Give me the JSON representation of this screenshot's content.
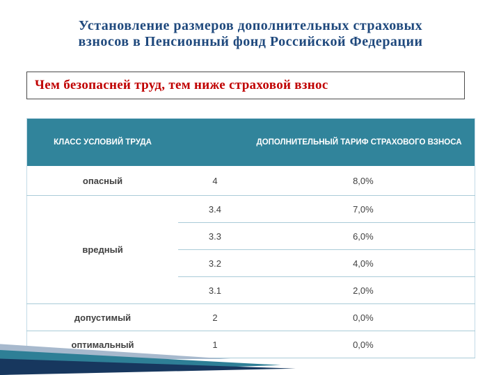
{
  "slide": {
    "title_line1": "Установление размеров дополнительных страховых",
    "title_line2": "взносов в Пенсионный фонд Российской Федерации",
    "highlight_text": "Чем безопасней труд, тем ниже страховой взнос"
  },
  "table": {
    "header_class": "КЛАСС УСЛОВИЙ ТРУДА",
    "header_tariff": "ДОПОЛНИТЕЛЬНЫЙ ТАРИФ СТРАХОВОГО ВЗНОСА",
    "rows": [
      {
        "label": "опасный",
        "class_value": "4",
        "tariff": "8,0%"
      },
      {
        "label": "вредный",
        "class_value": "3.4",
        "tariff": "7,0%"
      },
      {
        "class_value": "3.3",
        "tariff": "6,0%"
      },
      {
        "class_value": "3.2",
        "tariff": "4,0%"
      },
      {
        "class_value": "3.1",
        "tariff": "2,0%"
      },
      {
        "label": "допустимый",
        "class_value": "2",
        "tariff": "0,0%"
      },
      {
        "label": "оптимальный",
        "class_value": "1",
        "tariff": "0,0%"
      }
    ]
  },
  "colors": {
    "title_text": "#1F497D",
    "highlight_text": "#C00000",
    "table_header_bg": "#31849B",
    "row_separator": "#A9CBD8",
    "label_text": "#215968",
    "swoosh_navy": "#17375E",
    "swoosh_teal": "#2E7F96",
    "swoosh_light": "#A7B9CD"
  }
}
